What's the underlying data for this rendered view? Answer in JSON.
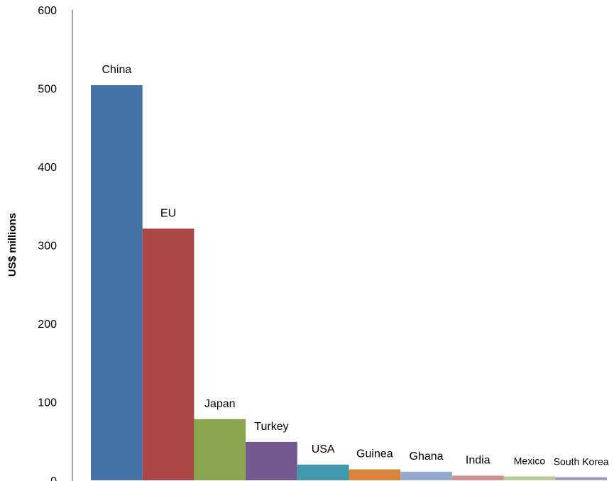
{
  "chart_data": {
    "type": "bar",
    "title": "",
    "xlabel": "",
    "ylabel": "US$ millions",
    "ylim": [
      0,
      600
    ],
    "yticks": [
      "0",
      "100",
      "200",
      "300",
      "400",
      "500",
      "600"
    ],
    "grid": false,
    "legend": "none",
    "categories": [
      "China",
      "EU",
      "Japan",
      "Turkey",
      "USA",
      "Guinea",
      "Ghana",
      "India",
      "Mexico",
      "South Korea"
    ],
    "values": [
      504,
      321,
      78,
      49,
      20,
      14,
      11,
      6,
      5,
      4
    ],
    "colors": [
      "#4572A7",
      "#AA4643",
      "#89A54E",
      "#71588F",
      "#4198AF",
      "#DB843D",
      "#93A9CF",
      "#D19392",
      "#B9CD96",
      "#A99BBD"
    ]
  }
}
